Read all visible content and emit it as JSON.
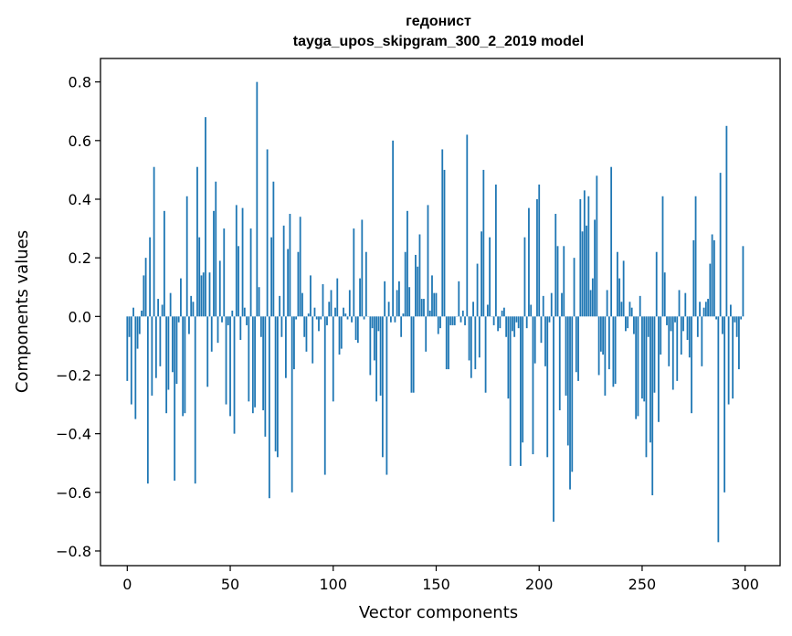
{
  "chart_data": {
    "type": "bar",
    "title": "гедонист",
    "subtitle": "tayga_upos_skipgram_300_2_2019 model",
    "xlabel": "Vector components",
    "ylabel": "Components values",
    "xlim": [
      -13,
      317
    ],
    "ylim": [
      -0.85,
      0.88
    ],
    "xticks": [
      0,
      50,
      100,
      150,
      200,
      250,
      300
    ],
    "yticks": [
      -0.8,
      -0.6,
      -0.4,
      -0.2,
      0.0,
      0.2,
      0.4,
      0.6,
      0.8
    ],
    "xtick_labels": [
      "0",
      "50",
      "100",
      "150",
      "200",
      "250",
      "300"
    ],
    "ytick_labels": [
      "−0.8",
      "−0.6",
      "−0.4",
      "−0.2",
      "0.0",
      "0.2",
      "0.4",
      "0.6",
      "0.8"
    ],
    "bar_color": "#1f77b4",
    "grid": false,
    "legend": "none",
    "values": [
      -0.22,
      -0.07,
      -0.3,
      0.03,
      -0.35,
      -0.11,
      -0.06,
      0.02,
      0.14,
      0.2,
      -0.57,
      0.27,
      -0.27,
      0.51,
      -0.21,
      0.06,
      -0.17,
      0.04,
      0.36,
      -0.33,
      -0.25,
      0.08,
      -0.19,
      -0.56,
      -0.23,
      -0.02,
      0.13,
      -0.34,
      -0.33,
      0.41,
      -0.06,
      0.07,
      0.05,
      -0.57,
      0.51,
      0.27,
      0.14,
      0.15,
      0.68,
      -0.24,
      0.15,
      -0.12,
      0.36,
      0.46,
      -0.09,
      0.19,
      -0.02,
      0.3,
      -0.3,
      -0.03,
      -0.34,
      0.02,
      -0.4,
      0.38,
      0.24,
      -0.08,
      0.37,
      0.03,
      -0.03,
      -0.29,
      0.3,
      -0.33,
      -0.31,
      0.8,
      0.1,
      -0.07,
      -0.32,
      -0.41,
      0.57,
      -0.62,
      0.27,
      0.46,
      -0.46,
      -0.48,
      0.07,
      -0.07,
      0.31,
      -0.21,
      0.23,
      0.35,
      -0.6,
      -0.18,
      -0.01,
      0.22,
      0.34,
      0.08,
      -0.07,
      -0.12,
      0.01,
      0.14,
      -0.16,
      0.03,
      -0.01,
      -0.05,
      -0.01,
      0.11,
      -0.54,
      -0.03,
      0.05,
      0.09,
      -0.29,
      0.03,
      0.13,
      -0.13,
      -0.11,
      0.03,
      0.01,
      -0.01,
      0.09,
      -0.02,
      0.3,
      -0.08,
      -0.09,
      0.13,
      0.33,
      -0.01,
      0.22,
      0.0,
      -0.2,
      -0.04,
      -0.15,
      -0.29,
      -0.05,
      -0.27,
      -0.48,
      0.12,
      -0.54,
      0.05,
      -0.02,
      0.6,
      -0.02,
      0.09,
      0.12,
      -0.07,
      0.01,
      0.22,
      0.36,
      0.1,
      -0.26,
      -0.26,
      0.21,
      0.17,
      0.28,
      0.06,
      0.06,
      -0.12,
      0.38,
      0.02,
      0.14,
      0.08,
      0.08,
      -0.06,
      -0.04,
      0.57,
      0.5,
      -0.18,
      -0.18,
      -0.03,
      -0.03,
      -0.03,
      0.0,
      0.12,
      -0.02,
      0.02,
      -0.03,
      0.62,
      -0.15,
      -0.21,
      0.05,
      -0.18,
      0.18,
      -0.14,
      0.29,
      0.5,
      -0.26,
      0.04,
      0.27,
      0.0,
      -0.03,
      0.45,
      -0.05,
      -0.04,
      0.02,
      0.03,
      -0.07,
      -0.28,
      -0.51,
      -0.05,
      -0.07,
      -0.02,
      -0.04,
      -0.51,
      -0.43,
      0.27,
      -0.04,
      0.37,
      0.04,
      -0.47,
      -0.16,
      0.4,
      0.45,
      -0.09,
      0.07,
      -0.17,
      -0.48,
      -0.02,
      0.08,
      -0.7,
      0.35,
      0.24,
      -0.32,
      0.08,
      0.24,
      -0.27,
      -0.44,
      -0.59,
      -0.53,
      0.2,
      -0.19,
      -0.22,
      0.4,
      0.29,
      0.43,
      0.31,
      0.41,
      0.09,
      0.13,
      0.33,
      0.48,
      -0.2,
      -0.12,
      -0.13,
      -0.27,
      0.09,
      -0.18,
      0.51,
      -0.24,
      -0.23,
      0.22,
      0.13,
      0.05,
      0.19,
      -0.05,
      -0.04,
      0.05,
      0.03,
      -0.06,
      -0.35,
      -0.34,
      0.07,
      -0.28,
      -0.29,
      -0.48,
      -0.07,
      -0.43,
      -0.61,
      -0.26,
      0.22,
      -0.36,
      -0.13,
      0.41,
      0.15,
      -0.03,
      -0.17,
      -0.05,
      -0.25,
      -0.02,
      -0.22,
      0.09,
      -0.13,
      -0.05,
      0.08,
      -0.08,
      -0.14,
      -0.33,
      0.26,
      0.41,
      -0.07,
      0.05,
      -0.17,
      0.03,
      0.05,
      0.06,
      0.18,
      0.28,
      0.26,
      -0.01,
      -0.77,
      0.49,
      -0.06,
      -0.6,
      0.65,
      -0.3,
      0.04,
      -0.28,
      -0.02,
      -0.07,
      -0.18,
      -0.01,
      0.24
    ]
  }
}
